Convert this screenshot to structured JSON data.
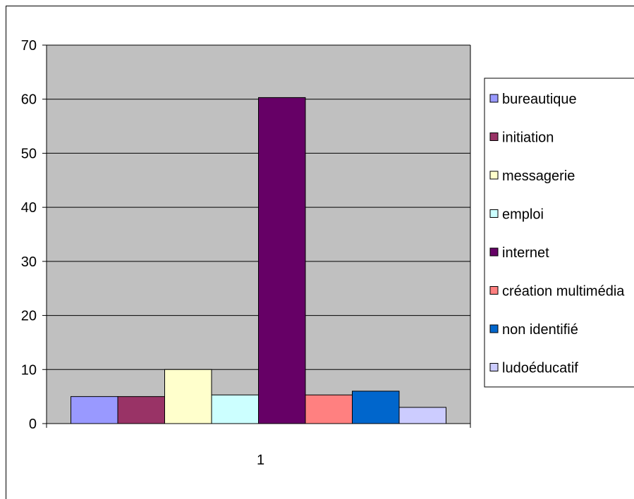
{
  "chart_data": {
    "type": "bar",
    "categories": [
      "1"
    ],
    "ylim": [
      0,
      70
    ],
    "yticks": [
      0,
      10,
      20,
      30,
      40,
      50,
      60,
      70
    ],
    "grid": true,
    "legend_position": "right",
    "plot_background": "#c0c0c0",
    "series": [
      {
        "name": "bureautique",
        "values": [
          5
        ],
        "color": "#9999ff"
      },
      {
        "name": "initiation",
        "values": [
          5
        ],
        "color": "#993366"
      },
      {
        "name": "messagerie",
        "values": [
          10
        ],
        "color": "#ffffcc"
      },
      {
        "name": "emploi",
        "values": [
          5.3
        ],
        "color": "#ccffff"
      },
      {
        "name": "internet",
        "values": [
          60.3
        ],
        "color": "#660066"
      },
      {
        "name": "création multimédia",
        "values": [
          5.3
        ],
        "color": "#ff8080"
      },
      {
        "name": "non identifié",
        "values": [
          6
        ],
        "color": "#0066cc"
      },
      {
        "name": "ludoéducatif",
        "values": [
          3
        ],
        "color": "#ccccff"
      }
    ]
  }
}
